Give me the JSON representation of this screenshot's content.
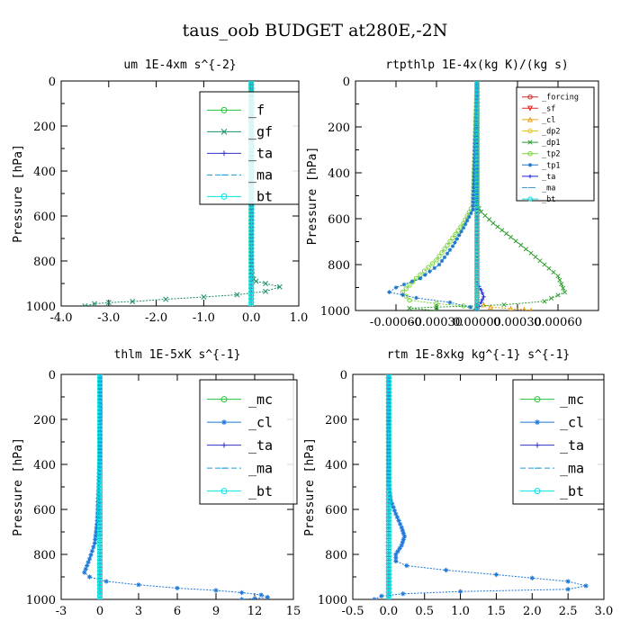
{
  "figure_title": "taus_oob  BUDGET at280E,-2N",
  "chart_data": [
    {
      "type": "line",
      "title": "um  1E-4xm s^{-2}",
      "ylabel": "Pressure [hPa]",
      "xlim": [
        -4.0,
        1.0
      ],
      "ylim": [
        1000,
        0
      ],
      "x_ticks": [
        "-4.0",
        "-3.0",
        "-2.0",
        "-1.0",
        "0.0",
        "1.0"
      ],
      "x_tick_values": [
        -4.0,
        -3.0,
        -2.0,
        -1.0,
        0.0,
        1.0
      ],
      "y_ticks": [
        "0",
        "200",
        "400",
        "600",
        "800",
        "1000"
      ],
      "legend_position": "top-right",
      "series": [
        {
          "name": "_f",
          "color": "#22c33a",
          "marker": "o",
          "x": [
            0,
            0
          ],
          "y": [
            0,
            1000
          ]
        },
        {
          "name": "_gf",
          "color": "#1f8f6a",
          "marker": "x",
          "x": [
            0,
            0,
            0.02,
            0.05,
            0.1,
            0.3,
            0.6,
            0.3,
            -0.3,
            -1.0,
            -1.8,
            -2.5,
            -3.0,
            -3.3,
            -3.5
          ],
          "y": [
            0,
            800,
            860,
            880,
            890,
            900,
            915,
            935,
            950,
            960,
            970,
            980,
            985,
            990,
            1000
          ]
        },
        {
          "name": "_ta",
          "color": "#3232c8",
          "marker": "+",
          "x": [
            0,
            0
          ],
          "y": [
            0,
            1000
          ]
        },
        {
          "name": "_ma",
          "color": "#1e9bd6",
          "marker": "-",
          "x": [
            0,
            0
          ],
          "y": [
            0,
            1000
          ]
        },
        {
          "name": "_bt",
          "color": "#00e5e5",
          "marker": "o",
          "x": [
            0,
            0.01,
            0,
            0.01,
            0
          ],
          "y": [
            0,
            100,
            200,
            300,
            1000
          ]
        }
      ]
    },
    {
      "type": "line",
      "title": "rtpthlp  1E-4x(kg K)/(kg s)",
      "ylabel": "Pressure [hPa]",
      "xlim": [
        -0.0009,
        0.0009
      ],
      "ylim": [
        1000,
        0
      ],
      "x_ticks": [
        "-0.00060",
        "-0.00030",
        "0.00000",
        "0.00030",
        "0.00060"
      ],
      "x_tick_values": [
        -0.0006,
        -0.0003,
        0.0,
        0.0003,
        0.0006
      ],
      "y_ticks": [
        "0",
        "200",
        "400",
        "600",
        "800",
        "1000"
      ],
      "legend_position": "top-right",
      "series": [
        {
          "name": "_forcing",
          "color": "#cc2a2a",
          "marker": "o",
          "x": [
            0,
            0
          ],
          "y": [
            0,
            1000
          ]
        },
        {
          "name": "_sf",
          "color": "#ee2222",
          "marker": "v",
          "x": [
            0,
            0
          ],
          "y": [
            0,
            1000
          ]
        },
        {
          "name": "_cl",
          "color": "#e8a317",
          "marker": "^",
          "x": [
            0,
            0,
            5e-05,
            0.0001,
            0.00025,
            0.00035,
            0.0004
          ],
          "y": [
            0,
            960,
            975,
            985,
            992,
            996,
            1000
          ]
        },
        {
          "name": "_dp2",
          "color": "#e8c31e",
          "marker": "o",
          "x": [
            0,
            0
          ],
          "y": [
            0,
            1000
          ]
        },
        {
          "name": "_dp1",
          "color": "#2e9e2e",
          "marker": "x",
          "x": [
            0,
            0,
            3e-05,
            0.00012,
            0.00025,
            0.0004,
            0.0006,
            0.00065,
            0.0005,
            0.0002,
            0,
            -0.0003,
            -0.0005,
            -0.0003
          ],
          "y": [
            0,
            540,
            570,
            620,
            680,
            750,
            850,
            920,
            960,
            975,
            980,
            985,
            990,
            1000
          ]
        },
        {
          "name": "_tp2",
          "color": "#7ad43a",
          "marker": "o",
          "x": [
            0,
            -3e-05,
            -0.0001,
            -0.0002,
            -0.0003,
            -0.00045,
            -0.00055,
            -0.0005,
            -0.0003,
            -0.0001,
            0
          ],
          "y": [
            0,
            540,
            620,
            700,
            780,
            860,
            920,
            955,
            970,
            980,
            1000
          ]
        },
        {
          "name": "_tp1",
          "color": "#1e78c8",
          "marker": "*",
          "x": [
            0,
            -3e-05,
            -0.0001,
            -0.00018,
            -0.00028,
            -0.00042,
            -0.0006,
            -0.00065,
            -0.00045,
            -0.0002,
            -5e-05,
            0
          ],
          "y": [
            0,
            560,
            640,
            720,
            800,
            860,
            900,
            920,
            945,
            965,
            985,
            1000
          ]
        },
        {
          "name": "_ta",
          "color": "#2222e0",
          "marker": "+",
          "x": [
            0,
            0,
            3e-05,
            5e-05,
            3e-05,
            0
          ],
          "y": [
            0,
            880,
            910,
            940,
            965,
            1000
          ]
        },
        {
          "name": "_ma",
          "color": "#3c9ad8",
          "marker": "-",
          "x": [
            0,
            0
          ],
          "y": [
            0,
            1000
          ]
        },
        {
          "name": "_bt",
          "color": "#11d9d9",
          "marker": "o",
          "x": [
            0,
            0
          ],
          "y": [
            0,
            1000
          ]
        }
      ]
    },
    {
      "type": "line",
      "title": "thlm  1E-5xK s^{-1}",
      "ylabel": "Pressure [hPa]",
      "xlim": [
        -3,
        15
      ],
      "ylim": [
        1000,
        0
      ],
      "x_ticks": [
        "-3",
        "0",
        "3",
        "6",
        "9",
        "12",
        "15"
      ],
      "x_tick_values": [
        -3,
        0,
        3,
        6,
        9,
        12,
        15
      ],
      "y_ticks": [
        "0",
        "200",
        "400",
        "600",
        "800",
        "1000"
      ],
      "legend_position": "top-right",
      "series": [
        {
          "name": "_mc",
          "color": "#22c33a",
          "marker": "o",
          "x": [
            0,
            0
          ],
          "y": [
            0,
            1000
          ]
        },
        {
          "name": "_cl",
          "color": "#1e78d8",
          "marker": "*",
          "x": [
            0,
            0.05,
            0,
            -0.1,
            -0.2,
            -0.4,
            -0.8,
            -1.2,
            -0.8,
            0.5,
            3,
            6,
            9,
            11,
            12.5,
            13,
            12,
            11
          ],
          "y": [
            0,
            150,
            300,
            500,
            650,
            750,
            820,
            880,
            900,
            920,
            935,
            950,
            960,
            970,
            980,
            990,
            996,
            1000
          ]
        },
        {
          "name": "_ta",
          "color": "#3232c8",
          "marker": "+",
          "x": [
            0,
            0
          ],
          "y": [
            0,
            1000
          ]
        },
        {
          "name": "_ma",
          "color": "#1e9bd6",
          "marker": "-",
          "x": [
            0,
            0
          ],
          "y": [
            0,
            1000
          ]
        },
        {
          "name": "_bt",
          "color": "#00e5e5",
          "marker": "o",
          "x": [
            0,
            0
          ],
          "y": [
            0,
            1000
          ]
        }
      ]
    },
    {
      "type": "line",
      "title": "rtm  1E-8xkg kg^{-1} s^{-1}",
      "ylabel": "Pressure [hPa]",
      "xlim": [
        -0.5,
        3.0
      ],
      "ylim": [
        1000,
        0
      ],
      "x_ticks": [
        "-0.5",
        "0.0",
        "0.5",
        "1.0",
        "1.5",
        "2.0",
        "2.5",
        "3.0"
      ],
      "x_tick_values": [
        -0.5,
        0.0,
        0.5,
        1.0,
        1.5,
        2.0,
        2.5,
        3.0
      ],
      "y_ticks": [
        "0",
        "200",
        "400",
        "600",
        "800",
        "1000"
      ],
      "legend_position": "top-right",
      "series": [
        {
          "name": "_mc",
          "color": "#22c33a",
          "marker": "o",
          "x": [
            0,
            0
          ],
          "y": [
            0,
            1000
          ]
        },
        {
          "name": "_cl",
          "color": "#1e78d8",
          "marker": "*",
          "x": [
            0,
            0,
            0.03,
            0.1,
            0.18,
            0.22,
            0.18,
            0.1,
            0.1,
            0.25,
            0.8,
            1.5,
            2.0,
            2.5,
            2.75,
            2.5,
            1.0,
            0.2,
            -0.1,
            -0.2
          ],
          "y": [
            0,
            480,
            560,
            620,
            680,
            720,
            760,
            800,
            830,
            850,
            870,
            890,
            905,
            920,
            940,
            955,
            965,
            975,
            985,
            1000
          ]
        },
        {
          "name": "_ta",
          "color": "#3232c8",
          "marker": "+",
          "x": [
            0,
            0
          ],
          "y": [
            0,
            1000
          ]
        },
        {
          "name": "_ma",
          "color": "#1e9bd6",
          "marker": "-",
          "x": [
            0,
            0
          ],
          "y": [
            0,
            1000
          ]
        },
        {
          "name": "_bt",
          "color": "#00e5e5",
          "marker": "o",
          "x": [
            0,
            0
          ],
          "y": [
            0,
            1000
          ]
        }
      ]
    }
  ]
}
